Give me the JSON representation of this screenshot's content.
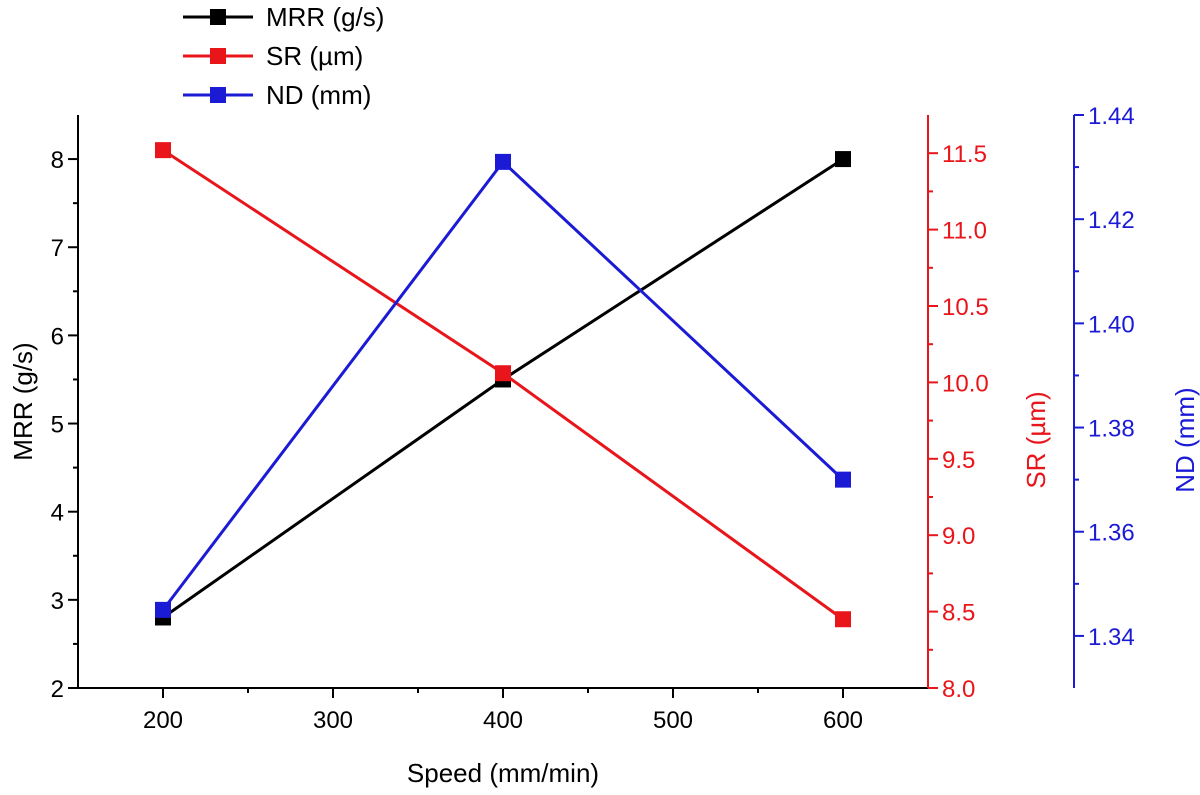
{
  "chart_data": {
    "type": "line",
    "xlabel": "Speed (mm/min)",
    "x": [
      200,
      400,
      600
    ],
    "xlim": [
      150,
      650
    ],
    "xticks": [
      200,
      300,
      400,
      500,
      600
    ],
    "legend_position": "top-left, outside plot",
    "grid": false,
    "axes": [
      {
        "id": "left",
        "label": "MRR (g/s)",
        "color": "#000000",
        "ylim": [
          2,
          8.5
        ],
        "ticks": [
          "2",
          "3",
          "4",
          "5",
          "6",
          "7",
          "8"
        ]
      },
      {
        "id": "right1",
        "label": "SR (µm)",
        "color": "#e8161b",
        "ylim": [
          8.0,
          11.75
        ],
        "ticks": [
          "8.0",
          "8.5",
          "9.0",
          "9.5",
          "10.0",
          "10.5",
          "11.0",
          "11.5"
        ]
      },
      {
        "id": "right2",
        "label": "ND (mm)",
        "color": "#1b1bd6",
        "ylim": [
          1.33,
          1.44
        ],
        "ticks": [
          "1.34",
          "1.36",
          "1.38",
          "1.40",
          "1.42",
          "1.44"
        ]
      }
    ],
    "series": [
      {
        "name": "MRR (g/s)",
        "axis": "left",
        "color": "#000000",
        "values": [
          2.8,
          5.5,
          8.0
        ]
      },
      {
        "name": "SR (µm)",
        "axis": "right1",
        "color": "#e8161b",
        "values": [
          11.52,
          10.06,
          8.45
        ]
      },
      {
        "name": "ND (mm)",
        "axis": "right2",
        "color": "#1b1bd6",
        "values": [
          1.345,
          1.431,
          1.37
        ]
      }
    ]
  }
}
